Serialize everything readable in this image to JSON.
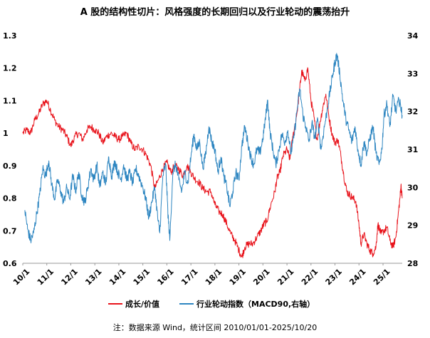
{
  "chart_data": {
    "type": "line",
    "title": "A 股的结构性切片：风格强度的长期回归以及行业轮动的震荡抬升",
    "x_ticks": [
      "10/1",
      "11/1",
      "12/1",
      "13/1",
      "14/1",
      "15/1",
      "16/1",
      "17/1",
      "18/1",
      "19/1",
      "20/1",
      "21/1",
      "22/1",
      "23/1",
      "24/1",
      "25/1"
    ],
    "x_range": [
      "2010-01-01",
      "2025-10-20"
    ],
    "y_left": {
      "ticks": [
        "0.6",
        "0.7",
        "0.8",
        "0.9",
        "1",
        "1.1",
        "1.2",
        "1.3"
      ],
      "lim": [
        0.6,
        1.3
      ]
    },
    "y_right": {
      "ticks": [
        "28",
        "29",
        "30",
        "31",
        "32",
        "33",
        "34"
      ],
      "lim": [
        28,
        34
      ]
    },
    "series": [
      {
        "name": "成长/价值",
        "axis": "left",
        "color": "#e8141c",
        "points": [
          [
            "2010-01-01",
            1.0
          ],
          [
            "2010-03-01",
            1.01
          ],
          [
            "2010-05-01",
            1.0
          ],
          [
            "2010-07-01",
            1.04
          ],
          [
            "2010-09-01",
            1.06
          ],
          [
            "2010-11-01",
            1.09
          ],
          [
            "2011-01-01",
            1.1
          ],
          [
            "2011-03-01",
            1.07
          ],
          [
            "2011-05-01",
            1.04
          ],
          [
            "2011-07-01",
            1.02
          ],
          [
            "2011-09-01",
            1.01
          ],
          [
            "2011-11-01",
            0.99
          ],
          [
            "2012-01-01",
            0.96
          ],
          [
            "2012-03-01",
            0.99
          ],
          [
            "2012-05-01",
            1.0
          ],
          [
            "2012-07-01",
            0.98
          ],
          [
            "2012-09-01",
            1.01
          ],
          [
            "2012-11-01",
            1.02
          ],
          [
            "2013-01-01",
            1.01
          ],
          [
            "2013-03-01",
            1.0
          ],
          [
            "2013-05-01",
            0.97
          ],
          [
            "2013-07-01",
            0.99
          ],
          [
            "2013-09-01",
            1.0
          ],
          [
            "2013-11-01",
            0.99
          ],
          [
            "2014-01-01",
            0.98
          ],
          [
            "2014-03-01",
            0.99
          ],
          [
            "2014-05-01",
            1.0
          ],
          [
            "2014-07-01",
            0.97
          ],
          [
            "2014-09-01",
            0.95
          ],
          [
            "2014-11-01",
            0.96
          ],
          [
            "2015-01-01",
            0.95
          ],
          [
            "2015-03-01",
            0.93
          ],
          [
            "2015-05-01",
            0.9
          ],
          [
            "2015-07-01",
            0.83
          ],
          [
            "2015-09-01",
            0.86
          ],
          [
            "2015-11-01",
            0.89
          ],
          [
            "2016-01-01",
            0.91
          ],
          [
            "2016-03-01",
            0.88
          ],
          [
            "2016-05-01",
            0.9
          ],
          [
            "2016-07-01",
            0.89
          ],
          [
            "2016-09-01",
            0.87
          ],
          [
            "2016-11-01",
            0.9
          ],
          [
            "2017-01-01",
            0.88
          ],
          [
            "2017-03-01",
            0.86
          ],
          [
            "2017-05-01",
            0.85
          ],
          [
            "2017-07-01",
            0.83
          ],
          [
            "2017-09-01",
            0.82
          ],
          [
            "2017-11-01",
            0.82
          ],
          [
            "2018-01-01",
            0.78
          ],
          [
            "2018-03-01",
            0.76
          ],
          [
            "2018-05-01",
            0.75
          ],
          [
            "2018-07-01",
            0.72
          ],
          [
            "2018-09-01",
            0.69
          ],
          [
            "2018-11-01",
            0.67
          ],
          [
            "2019-01-01",
            0.64
          ],
          [
            "2019-02-15",
            0.62
          ],
          [
            "2019-04-01",
            0.65
          ],
          [
            "2019-06-01",
            0.66
          ],
          [
            "2019-08-01",
            0.66
          ],
          [
            "2019-10-01",
            0.68
          ],
          [
            "2019-12-01",
            0.7
          ],
          [
            "2020-01-15",
            0.72
          ],
          [
            "2020-03-01",
            0.73
          ],
          [
            "2020-05-01",
            0.78
          ],
          [
            "2020-07-01",
            0.82
          ],
          [
            "2020-08-01",
            0.86
          ],
          [
            "2020-09-15",
            0.88
          ],
          [
            "2020-11-01",
            0.93
          ],
          [
            "2021-01-01",
            0.95
          ],
          [
            "2021-02-15",
            0.92
          ],
          [
            "2021-04-01",
            0.99
          ],
          [
            "2021-06-01",
            1.06
          ],
          [
            "2021-07-15",
            1.14
          ],
          [
            "2021-08-15",
            1.19
          ],
          [
            "2021-10-01",
            1.16
          ],
          [
            "2021-11-15",
            1.2
          ],
          [
            "2022-01-01",
            1.1
          ],
          [
            "2022-02-15",
            1.05
          ],
          [
            "2022-04-01",
            0.98
          ],
          [
            "2022-05-15",
            1.03
          ],
          [
            "2022-07-01",
            1.08
          ],
          [
            "2022-08-15",
            1.12
          ],
          [
            "2022-10-01",
            1.05
          ],
          [
            "2022-11-15",
            1.0
          ],
          [
            "2023-01-01",
            0.97
          ],
          [
            "2023-02-15",
            0.98
          ],
          [
            "2023-04-01",
            0.93
          ],
          [
            "2023-05-15",
            0.87
          ],
          [
            "2023-07-01",
            0.82
          ],
          [
            "2023-08-15",
            0.81
          ],
          [
            "2023-10-01",
            0.8
          ],
          [
            "2023-11-15",
            0.79
          ],
          [
            "2024-01-01",
            0.72
          ],
          [
            "2024-02-01",
            0.66
          ],
          [
            "2024-03-15",
            0.69
          ],
          [
            "2024-05-01",
            0.66
          ],
          [
            "2024-06-15",
            0.64
          ],
          [
            "2024-08-01",
            0.63
          ],
          [
            "2024-09-15",
            0.65
          ],
          [
            "2024-10-15",
            0.72
          ],
          [
            "2024-12-01",
            0.69
          ],
          [
            "2025-01-15",
            0.7
          ],
          [
            "2025-03-01",
            0.71
          ],
          [
            "2025-04-15",
            0.67
          ],
          [
            "2025-06-01",
            0.65
          ],
          [
            "2025-07-15",
            0.68
          ],
          [
            "2025-08-15",
            0.74
          ],
          [
            "2025-09-15",
            0.8
          ],
          [
            "2025-10-01",
            0.84
          ],
          [
            "2025-10-20",
            0.8
          ]
        ]
      },
      {
        "name": "行业轮动指数（MACD90,右轴）",
        "axis": "right",
        "color": "#2e86c1",
        "points": [
          [
            "2010-02-01",
            29.4
          ],
          [
            "2010-03-15",
            28.9
          ],
          [
            "2010-05-01",
            28.6
          ],
          [
            "2010-06-15",
            28.8
          ],
          [
            "2010-08-01",
            29.3
          ],
          [
            "2010-09-15",
            29.8
          ],
          [
            "2010-11-01",
            30.5
          ],
          [
            "2010-12-15",
            30.3
          ],
          [
            "2011-02-01",
            30.7
          ],
          [
            "2011-03-15",
            30.1
          ],
          [
            "2011-05-01",
            29.7
          ],
          [
            "2011-06-15",
            30.2
          ],
          [
            "2011-08-01",
            29.9
          ],
          [
            "2011-09-15",
            29.6
          ],
          [
            "2011-11-01",
            30.0
          ],
          [
            "2011-12-15",
            29.7
          ],
          [
            "2012-02-01",
            30.3
          ],
          [
            "2012-03-15",
            29.9
          ],
          [
            "2012-05-01",
            30.4
          ],
          [
            "2012-06-15",
            29.8
          ],
          [
            "2012-08-01",
            29.6
          ],
          [
            "2012-09-15",
            30.0
          ],
          [
            "2012-11-01",
            30.5
          ],
          [
            "2012-12-15",
            30.2
          ],
          [
            "2013-02-01",
            30.6
          ],
          [
            "2013-03-15",
            30.0
          ],
          [
            "2013-05-01",
            30.4
          ],
          [
            "2013-06-15",
            30.1
          ],
          [
            "2013-08-01",
            30.8
          ],
          [
            "2013-09-15",
            30.3
          ],
          [
            "2013-11-01",
            30.7
          ],
          [
            "2013-12-15",
            30.4
          ],
          [
            "2014-02-01",
            30.2
          ],
          [
            "2014-03-15",
            30.6
          ],
          [
            "2014-05-01",
            30.2
          ],
          [
            "2014-06-15",
            30.4
          ],
          [
            "2014-08-01",
            30.1
          ],
          [
            "2014-09-15",
            30.5
          ],
          [
            "2014-11-01",
            30.3
          ],
          [
            "2015-01-01",
            30.0
          ],
          [
            "2015-02-15",
            29.7
          ],
          [
            "2015-04-01",
            29.2
          ],
          [
            "2015-05-15",
            29.6
          ],
          [
            "2015-07-01",
            30.0
          ],
          [
            "2015-08-15",
            29.2
          ],
          [
            "2015-09-15",
            28.8
          ],
          [
            "2015-11-01",
            30.3
          ],
          [
            "2015-12-15",
            30.6
          ],
          [
            "2016-01-15",
            29.4
          ],
          [
            "2016-02-15",
            28.6
          ],
          [
            "2016-04-01",
            30.4
          ],
          [
            "2016-05-15",
            30.6
          ],
          [
            "2016-07-01",
            30.2
          ],
          [
            "2016-08-15",
            29.9
          ],
          [
            "2016-10-01",
            30.4
          ],
          [
            "2016-11-15",
            30.1
          ],
          [
            "2017-01-01",
            30.8
          ],
          [
            "2017-02-15",
            31.4
          ],
          [
            "2017-04-01",
            31.0
          ],
          [
            "2017-05-15",
            31.2
          ],
          [
            "2017-07-01",
            30.5
          ],
          [
            "2017-08-15",
            30.9
          ],
          [
            "2017-10-01",
            31.6
          ],
          [
            "2017-11-15",
            31.2
          ],
          [
            "2018-01-01",
            31.0
          ],
          [
            "2018-02-15",
            30.4
          ],
          [
            "2018-04-01",
            30.8
          ],
          [
            "2018-05-15",
            30.3
          ],
          [
            "2018-07-01",
            30.0
          ],
          [
            "2018-08-15",
            29.5
          ],
          [
            "2018-10-01",
            29.9
          ],
          [
            "2018-11-15",
            30.4
          ],
          [
            "2019-01-01",
            30.2
          ],
          [
            "2019-02-15",
            31.1
          ],
          [
            "2019-04-01",
            31.6
          ],
          [
            "2019-05-15",
            31.2
          ],
          [
            "2019-07-01",
            30.8
          ],
          [
            "2019-08-15",
            30.6
          ],
          [
            "2019-10-01",
            31.0
          ],
          [
            "2019-11-15",
            30.9
          ],
          [
            "2020-01-01",
            31.3
          ],
          [
            "2020-02-15",
            31.9
          ],
          [
            "2020-03-15",
            32.3
          ],
          [
            "2020-04-15",
            31.5
          ],
          [
            "2020-06-01",
            31.0
          ],
          [
            "2020-07-15",
            30.6
          ],
          [
            "2020-09-01",
            31.0
          ],
          [
            "2020-10-15",
            31.4
          ],
          [
            "2020-12-01",
            31.2
          ],
          [
            "2021-01-15",
            31.5
          ],
          [
            "2021-03-01",
            30.9
          ],
          [
            "2021-04-15",
            31.3
          ],
          [
            "2021-06-01",
            32.0
          ],
          [
            "2021-07-15",
            32.6
          ],
          [
            "2021-09-01",
            31.9
          ],
          [
            "2021-10-15",
            31.6
          ],
          [
            "2021-12-01",
            31.2
          ],
          [
            "2022-01-15",
            31.7
          ],
          [
            "2022-03-01",
            31.3
          ],
          [
            "2022-04-15",
            31.8
          ],
          [
            "2022-06-01",
            31.0
          ],
          [
            "2022-07-15",
            31.5
          ],
          [
            "2022-09-01",
            32.0
          ],
          [
            "2022-10-15",
            32.5
          ],
          [
            "2022-12-01",
            33.0
          ],
          [
            "2023-01-01",
            33.3
          ],
          [
            "2023-02-01",
            33.5
          ],
          [
            "2023-03-15",
            33.0
          ],
          [
            "2023-05-01",
            32.3
          ],
          [
            "2023-06-15",
            31.8
          ],
          [
            "2023-08-01",
            31.5
          ],
          [
            "2023-09-15",
            31.2
          ],
          [
            "2023-11-01",
            31.6
          ],
          [
            "2023-12-15",
            31.0
          ],
          [
            "2024-02-01",
            30.6
          ],
          [
            "2024-03-15",
            31.2
          ],
          [
            "2024-05-01",
            30.9
          ],
          [
            "2024-06-15",
            31.3
          ],
          [
            "2024-08-01",
            31.6
          ],
          [
            "2024-09-15",
            30.9
          ],
          [
            "2024-11-01",
            30.6
          ],
          [
            "2024-12-15",
            31.0
          ],
          [
            "2025-01-15",
            31.9
          ],
          [
            "2025-03-01",
            32.2
          ],
          [
            "2025-04-15",
            31.6
          ],
          [
            "2025-06-01",
            32.4
          ],
          [
            "2025-07-15",
            32.0
          ],
          [
            "2025-09-01",
            32.3
          ],
          [
            "2025-10-01",
            32.1
          ],
          [
            "2025-10-20",
            31.9
          ]
        ]
      }
    ],
    "legend_position": "bottom",
    "grid": false
  },
  "footer": {
    "source": "注：数据来源 Wind，统计区间 2010/01/01-2025/10/20"
  }
}
